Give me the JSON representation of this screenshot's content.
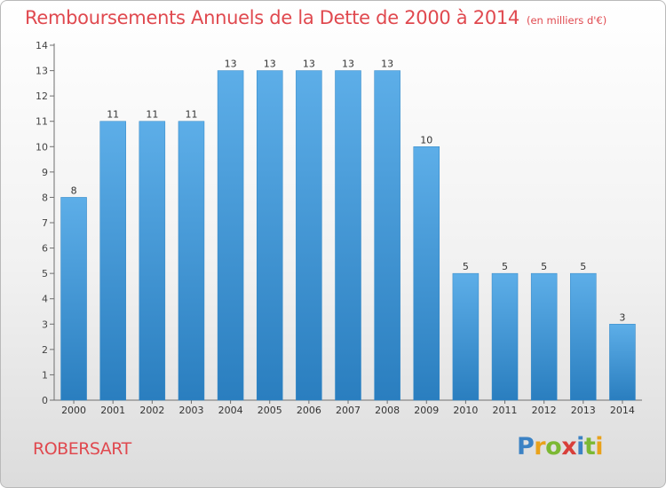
{
  "header": {
    "title": "Remboursements Annuels de la Dette de 2000 à 2014",
    "unit": "(en milliers d'€)"
  },
  "footer": {
    "commune": "ROBERSART",
    "logo_text": "Proxiti",
    "logo_letters": [
      "P",
      "r",
      "o",
      "x",
      "i",
      "t",
      "i"
    ]
  },
  "colors": {
    "title": "#e0494f",
    "bar_top": "#5daee8",
    "bar_bottom": "#2a7ebf",
    "bar_edge": "#2f85c5"
  },
  "chart_data": {
    "type": "bar",
    "title": "Remboursements Annuels de la Dette de 2000 à 2014",
    "xlabel": "",
    "ylabel": "",
    "categories": [
      "2000",
      "2001",
      "2002",
      "2003",
      "2004",
      "2005",
      "2006",
      "2007",
      "2008",
      "2009",
      "2010",
      "2011",
      "2012",
      "2013",
      "2014"
    ],
    "values": [
      8,
      11,
      11,
      11,
      13,
      13,
      13,
      13,
      13,
      10,
      5,
      5,
      5,
      5,
      3
    ],
    "ylim": [
      0,
      14
    ],
    "yticks": [
      0,
      1,
      2,
      3,
      4,
      5,
      6,
      7,
      8,
      9,
      10,
      11,
      12,
      13,
      14
    ],
    "grid": false,
    "legend": "none"
  }
}
